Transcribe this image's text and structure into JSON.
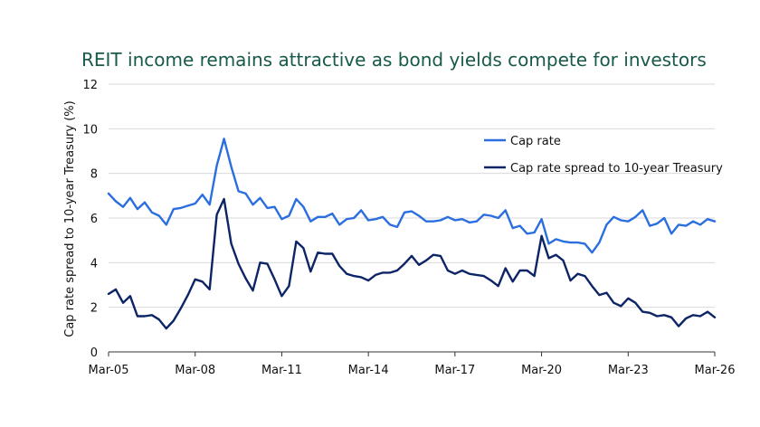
{
  "chart_data": {
    "type": "line",
    "title": "REIT income remains attractive as bond yields compete for investors",
    "xlabel": "",
    "ylabel": "Cap rate spread to 10-year Treasury (%)",
    "ylim": [
      0,
      12
    ],
    "yticks": [
      0,
      2,
      4,
      6,
      8,
      10,
      12
    ],
    "xlim": [
      2005.17,
      2026.17
    ],
    "xticks": [
      {
        "label": "Mar-05",
        "value": 2005.17
      },
      {
        "label": "Mar-08",
        "value": 2008.17
      },
      {
        "label": "Mar-11",
        "value": 2011.17
      },
      {
        "label": "Mar-14",
        "value": 2014.17
      },
      {
        "label": "Mar-17",
        "value": 2017.17
      },
      {
        "label": "Mar-20",
        "value": 2020.17
      },
      {
        "label": "Mar-23",
        "value": 2023.17
      },
      {
        "label": "Mar-26",
        "value": 2026.17
      }
    ],
    "grid": "horizontal",
    "legend_position": "top-right",
    "x_start": 2005.17,
    "x_step": 0.25,
    "series": [
      {
        "name": "Cap rate",
        "color": "#2a6ee0",
        "values": [
          7.1,
          6.75,
          6.5,
          6.9,
          6.4,
          6.7,
          6.25,
          6.1,
          5.7,
          6.4,
          6.45,
          6.55,
          6.65,
          7.05,
          6.6,
          8.35,
          9.55,
          8.3,
          7.2,
          7.1,
          6.6,
          6.9,
          6.45,
          6.5,
          5.95,
          6.1,
          6.85,
          6.5,
          5.85,
          6.05,
          6.05,
          6.2,
          5.7,
          5.95,
          6.0,
          6.35,
          5.9,
          5.95,
          6.05,
          5.7,
          5.6,
          6.25,
          6.3,
          6.1,
          5.85,
          5.85,
          5.9,
          6.05,
          5.9,
          5.95,
          5.8,
          5.85,
          6.15,
          6.1,
          6.0,
          6.35,
          5.55,
          5.65,
          5.3,
          5.35,
          5.95,
          4.85,
          5.05,
          4.95,
          4.9,
          4.9,
          4.85,
          4.45,
          4.9,
          5.7,
          6.05,
          5.9,
          5.85,
          6.05,
          6.35,
          5.65,
          5.75,
          6.0,
          5.3,
          5.7,
          5.65,
          5.85,
          5.7,
          5.95,
          5.85
        ]
      },
      {
        "name": "Cap rate spread to 10-year Treasury",
        "color": "#0d2466",
        "values": [
          2.6,
          2.8,
          2.2,
          2.5,
          1.6,
          1.6,
          1.65,
          1.45,
          1.05,
          1.4,
          1.95,
          2.55,
          3.25,
          3.15,
          2.8,
          6.15,
          6.85,
          4.85,
          3.95,
          3.3,
          2.75,
          4.0,
          3.95,
          3.25,
          2.5,
          2.95,
          4.95,
          4.65,
          3.6,
          4.45,
          4.4,
          4.4,
          3.85,
          3.5,
          3.4,
          3.35,
          3.2,
          3.45,
          3.55,
          3.55,
          3.65,
          3.95,
          4.3,
          3.9,
          4.1,
          4.35,
          4.3,
          3.65,
          3.5,
          3.65,
          3.5,
          3.45,
          3.4,
          3.2,
          2.95,
          3.75,
          3.15,
          3.65,
          3.65,
          3.4,
          5.2,
          4.2,
          4.35,
          4.1,
          3.2,
          3.5,
          3.4,
          2.95,
          2.55,
          2.65,
          2.2,
          2.05,
          2.4,
          2.2,
          1.8,
          1.75,
          1.6,
          1.65,
          1.55,
          1.15,
          1.5,
          1.65,
          1.6,
          1.8,
          1.55
        ]
      }
    ]
  }
}
